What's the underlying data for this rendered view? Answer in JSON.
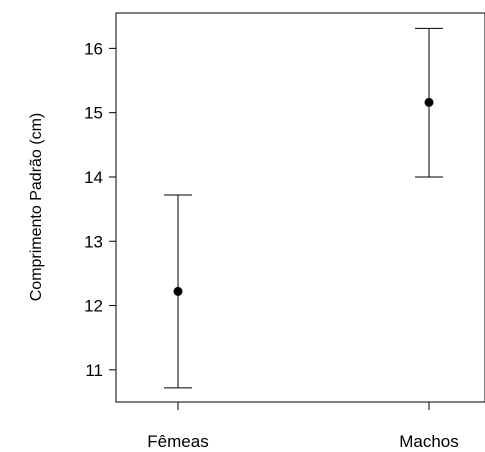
{
  "chart_data": {
    "type": "scatter",
    "title": "",
    "xlabel": "",
    "ylabel": "Comprimento Padrão (cm)",
    "categories": [
      "Fêmeas",
      "Machos"
    ],
    "series": [
      {
        "values": [
          12.22,
          15.16
        ],
        "lower": [
          10.72,
          14.0
        ],
        "upper": [
          13.72,
          16.31
        ]
      }
    ],
    "yticks": [
      11,
      12,
      13,
      14,
      15,
      16
    ],
    "ylim": [
      10.5,
      16.55
    ],
    "grid": false,
    "legend": "none"
  }
}
